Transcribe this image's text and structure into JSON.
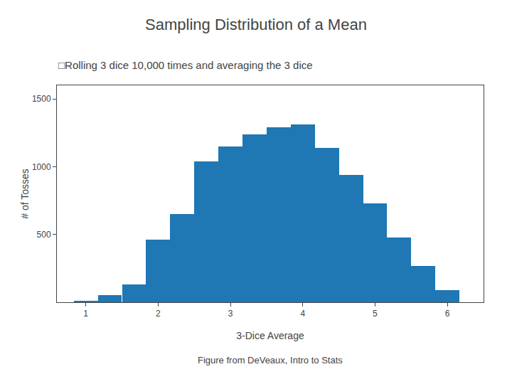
{
  "chart_data": {
    "type": "bar",
    "title": "Sampling Distribution of a Mean",
    "subtitle": "□Rolling 3 dice 10,000 times and averaging the 3 dice",
    "annotations": [
      "Figure from DeVeaux, Intro to Stats"
    ],
    "x_label": "3-Dice Average",
    "y_label": "# of Tosses",
    "x": [
      1.0,
      1.333,
      1.667,
      2.0,
      2.333,
      2.667,
      3.0,
      3.333,
      3.667,
      4.0,
      4.333,
      4.667,
      5.0,
      5.333,
      5.667,
      6.0
    ],
    "values": [
      10,
      50,
      130,
      460,
      650,
      1040,
      1150,
      1240,
      1290,
      1310,
      1140,
      940,
      730,
      480,
      270,
      90
    ],
    "xlim": [
      0.6,
      6.5
    ],
    "xticks": [
      1,
      2,
      3,
      4,
      5,
      6
    ],
    "ylim": [
      0,
      1600
    ],
    "yticks": [
      500,
      1000,
      1500
    ],
    "grid": false
  }
}
